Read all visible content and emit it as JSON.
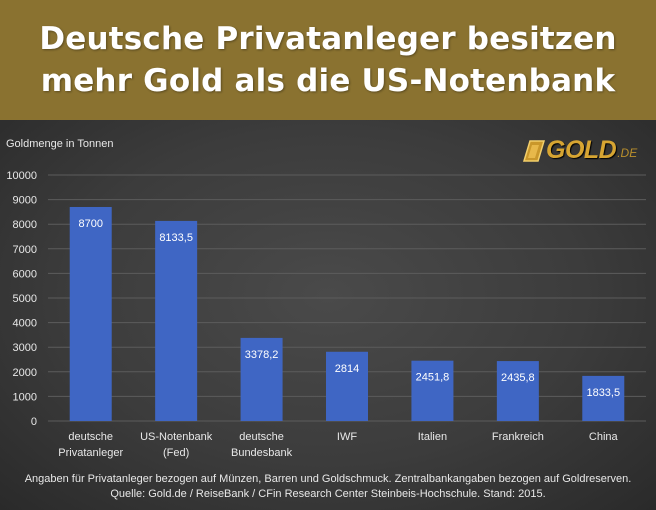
{
  "header": {
    "title_line1": "Deutsche Privatanleger besitzen",
    "title_line2": "mehr Gold als die US-Notenbank",
    "background_color": "#8a7230"
  },
  "logo": {
    "text": "GOLD",
    "suffix": ".DE",
    "color": "#d7a532"
  },
  "footer": {
    "line1": "Angaben für Privatanleger bezogen auf Münzen, Barren und Goldschmuck. Zentralbankangaben bezogen auf Goldreserven.",
    "line2": "Quelle: Gold.de / ReiseBank / CFin Research Center Steinbeis-Hochschule. Stand: 2015."
  },
  "chart_data": {
    "type": "bar",
    "title": "",
    "ylabel": "Goldmenge in Tonnen",
    "xlabel": "",
    "ylim": [
      0,
      10000
    ],
    "yticks": [
      0,
      1000,
      2000,
      3000,
      4000,
      5000,
      6000,
      7000,
      8000,
      9000,
      10000
    ],
    "ytick_labels": [
      "0",
      "1000",
      "2000",
      "3000",
      "4000",
      "5000",
      "6000",
      "7000",
      "8000",
      "9000",
      "10000"
    ],
    "grid": true,
    "bar_color": "#3f66c4",
    "categories": [
      [
        "deutsche",
        "Privatanleger"
      ],
      [
        "US-Notenbank",
        "(Fed)"
      ],
      [
        "deutsche",
        "Bundesbank"
      ],
      [
        "IWF"
      ],
      [
        "Italien"
      ],
      [
        "Frankreich"
      ],
      [
        "China"
      ]
    ],
    "values": [
      8700,
      8133.5,
      3378.2,
      2814,
      2451.8,
      2435.8,
      1833.5
    ],
    "data_labels": [
      "8700",
      "8133,5",
      "3378,2",
      "2814",
      "2451,8",
      "2435,8",
      "1833,5"
    ]
  }
}
